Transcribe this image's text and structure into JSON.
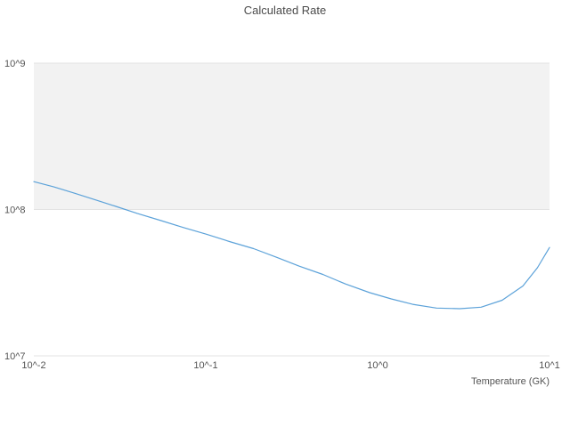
{
  "chart_data": {
    "type": "line",
    "title": "Calculated Rate",
    "xlabel": "Temperature (GK)",
    "ylabel": "",
    "x_scale": "log",
    "y_scale": "log",
    "xlim": [
      0.01,
      10
    ],
    "ylim": [
      10000000.0,
      1000000000.0
    ],
    "grid": true,
    "legend": "none",
    "x_ticks": [
      {
        "value": 0.01,
        "label": "10^-2"
      },
      {
        "value": 0.1,
        "label": "10^-1"
      },
      {
        "value": 1,
        "label": "10^0"
      },
      {
        "value": 10,
        "label": "10^1"
      }
    ],
    "y_ticks": [
      {
        "value": 10000000.0,
        "label": "10^7"
      },
      {
        "value": 100000000.0,
        "label": "10^8"
      },
      {
        "value": 1000000000.0,
        "label": "10^9"
      }
    ],
    "shaded_band": {
      "y_min": 100000000.0,
      "y_max": 1000000000.0,
      "color": "#f2f2f2"
    },
    "line_color": "#5ca2d9",
    "gridline_color": "#e3e3e3",
    "series": [
      {
        "name": "Calculated Rate",
        "x": [
          0.01,
          0.013,
          0.017,
          0.022,
          0.03,
          0.04,
          0.055,
          0.075,
          0.1,
          0.14,
          0.19,
          0.26,
          0.35,
          0.48,
          0.65,
          0.9,
          1.2,
          1.6,
          2.2,
          3.0,
          4.0,
          5.3,
          7.0,
          8.5,
          10
        ],
        "y": [
          155000000.0,
          143000000.0,
          130000000.0,
          118000000.0,
          105000000.0,
          94000000.0,
          84000000.0,
          75000000.0,
          68000000.0,
          60000000.0,
          54000000.0,
          47000000.0,
          41000000.0,
          36000000.0,
          31000000.0,
          27000000.0,
          24500000.0,
          22500000.0,
          21200000.0,
          21000000.0,
          21500000.0,
          24000000.0,
          30000000.0,
          40000000.0,
          55000000.0
        ]
      }
    ]
  }
}
